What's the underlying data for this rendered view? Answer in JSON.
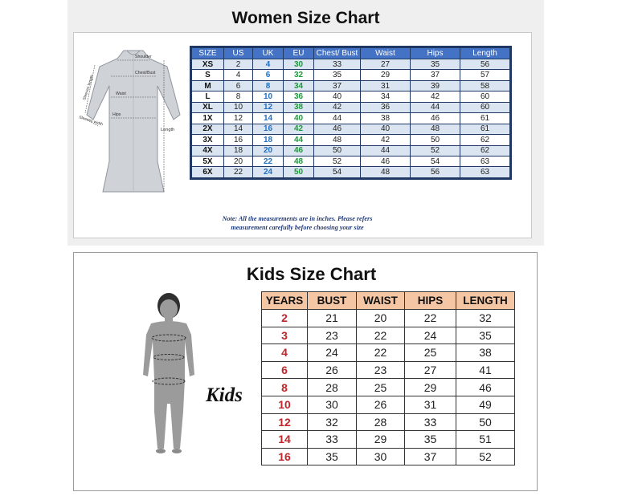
{
  "women": {
    "title": "Women Size Chart",
    "figure_labels": {
      "sleeves_length": "Sleeves length",
      "shoulder": "Shoulder",
      "chest_bust": "Chest/Bust",
      "waist": "Waist",
      "hips": "Hips",
      "sleeves_width": "Sleeves width",
      "length": "Length"
    },
    "headers": [
      "SIZE",
      "US",
      "UK",
      "EU",
      "Chest/ Bust",
      "Waist",
      "Hips",
      "Length"
    ],
    "rows": [
      [
        "XS",
        "2",
        "4",
        "30",
        "33",
        "27",
        "35",
        "56"
      ],
      [
        "S",
        "4",
        "6",
        "32",
        "35",
        "29",
        "37",
        "57"
      ],
      [
        "M",
        "6",
        "8",
        "34",
        "37",
        "31",
        "39",
        "58"
      ],
      [
        "L",
        "8",
        "10",
        "36",
        "40",
        "34",
        "42",
        "60"
      ],
      [
        "XL",
        "10",
        "12",
        "38",
        "42",
        "36",
        "44",
        "60"
      ],
      [
        "1X",
        "12",
        "14",
        "40",
        "44",
        "38",
        "46",
        "61"
      ],
      [
        "2X",
        "14",
        "16",
        "42",
        "46",
        "40",
        "48",
        "61"
      ],
      [
        "3X",
        "16",
        "18",
        "44",
        "48",
        "42",
        "50",
        "62"
      ],
      [
        "4X",
        "18",
        "20",
        "46",
        "50",
        "44",
        "52",
        "62"
      ],
      [
        "5X",
        "20",
        "22",
        "48",
        "52",
        "46",
        "54",
        "63"
      ],
      [
        "6X",
        "22",
        "24",
        "50",
        "54",
        "48",
        "56",
        "63"
      ]
    ],
    "note_line1": "Note: All the measurements are in inches. Please refers",
    "note_line2": "measurement carefully before choosing your size",
    "colors": {
      "header_bg": "#4472c4",
      "stripe": "#dbe5f1",
      "uk_text": "#1f6fc5",
      "eu_text": "#1d9a3a"
    }
  },
  "kids": {
    "title": "Kids Size Chart",
    "label": "Kids",
    "headers": [
      "YEARS",
      "BUST",
      "WAIST",
      "HIPS",
      "LENGTH"
    ],
    "rows": [
      [
        "2",
        "21",
        "20",
        "22",
        "32"
      ],
      [
        "3",
        "23",
        "22",
        "24",
        "35"
      ],
      [
        "4",
        "24",
        "22",
        "25",
        "38"
      ],
      [
        "6",
        "26",
        "23",
        "27",
        "41"
      ],
      [
        "8",
        "28",
        "25",
        "29",
        "46"
      ],
      [
        "10",
        "30",
        "26",
        "31",
        "49"
      ],
      [
        "12",
        "32",
        "28",
        "33",
        "50"
      ],
      [
        "14",
        "33",
        "29",
        "35",
        "51"
      ],
      [
        "16",
        "35",
        "30",
        "37",
        "52"
      ]
    ],
    "colors": {
      "header_bg": "#f4c6a4",
      "year_text": "#c0262a"
    }
  }
}
